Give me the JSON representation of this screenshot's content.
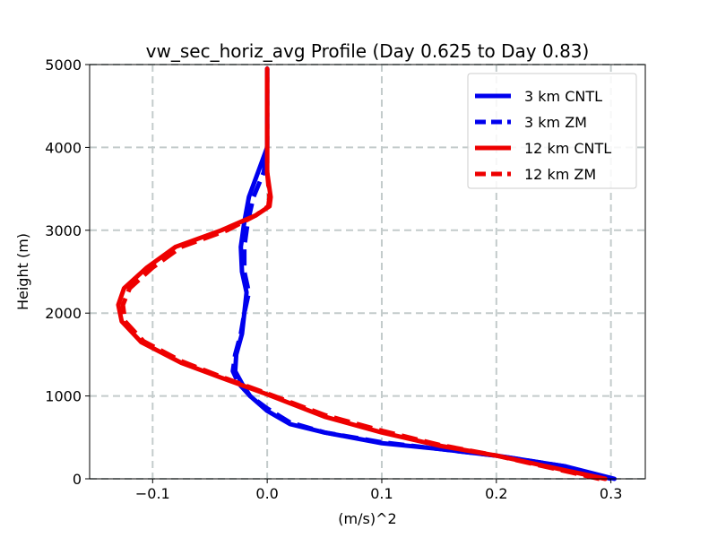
{
  "chart_data": {
    "type": "line",
    "title": "vw_sec_horiz_avg Profile (Day 0.625 to Day 0.83)",
    "xlabel": "(m/s)^2",
    "ylabel": "Height (m)",
    "xlim": [
      -0.155,
      0.33
    ],
    "ylim": [
      0,
      5000
    ],
    "x_ticks": [
      -0.1,
      0.0,
      0.1,
      0.2,
      0.3
    ],
    "x_tick_labels": [
      "−0.1",
      "0.0",
      "0.1",
      "0.2",
      "0.3"
    ],
    "y_ticks": [
      0,
      1000,
      2000,
      3000,
      4000,
      5000
    ],
    "y_tick_labels": [
      "0",
      "1000",
      "2000",
      "3000",
      "4000",
      "5000"
    ],
    "grid": true,
    "legend_position": "upper-right",
    "series": [
      {
        "name": "3 km CNTL",
        "color": "#0000ee",
        "style": "solid",
        "points": [
          [
            0.303,
            0
          ],
          [
            0.26,
            150
          ],
          [
            0.2,
            280
          ],
          [
            0.15,
            360
          ],
          [
            0.1,
            430
          ],
          [
            0.05,
            560
          ],
          [
            0.02,
            660
          ],
          [
            0.0,
            820
          ],
          [
            -0.015,
            1000
          ],
          [
            -0.022,
            1150
          ],
          [
            -0.028,
            1300
          ],
          [
            -0.027,
            1500
          ],
          [
            -0.022,
            1750
          ],
          [
            -0.02,
            2000
          ],
          [
            -0.018,
            2250
          ],
          [
            -0.022,
            2500
          ],
          [
            -0.023,
            2800
          ],
          [
            -0.02,
            3100
          ],
          [
            -0.016,
            3400
          ],
          [
            -0.008,
            3700
          ],
          [
            0.0,
            4000
          ],
          [
            0.0,
            4500
          ],
          [
            0.0,
            4950
          ]
        ]
      },
      {
        "name": "3 km ZM",
        "color": "#0000ee",
        "style": "dashed",
        "points": [
          [
            0.3,
            0
          ],
          [
            0.26,
            150
          ],
          [
            0.2,
            280
          ],
          [
            0.15,
            360
          ],
          [
            0.1,
            440
          ],
          [
            0.05,
            560
          ],
          [
            0.02,
            680
          ],
          [
            0.0,
            850
          ],
          [
            -0.015,
            1000
          ],
          [
            -0.025,
            1150
          ],
          [
            -0.03,
            1300
          ],
          [
            -0.028,
            1500
          ],
          [
            -0.023,
            1750
          ],
          [
            -0.02,
            2000
          ],
          [
            -0.016,
            2250
          ],
          [
            -0.02,
            2500
          ],
          [
            -0.02,
            2800
          ],
          [
            -0.017,
            3100
          ],
          [
            -0.012,
            3400
          ],
          [
            -0.003,
            3700
          ],
          [
            0.0,
            4000
          ],
          [
            0.0,
            4500
          ],
          [
            0.0,
            4950
          ]
        ]
      },
      {
        "name": "12 km CNTL",
        "color": "#ee0000",
        "style": "solid",
        "points": [
          [
            0.295,
            0
          ],
          [
            0.2,
            280
          ],
          [
            0.15,
            400
          ],
          [
            0.1,
            560
          ],
          [
            0.05,
            750
          ],
          [
            0.0,
            1020
          ],
          [
            -0.04,
            1220
          ],
          [
            -0.075,
            1400
          ],
          [
            -0.11,
            1650
          ],
          [
            -0.127,
            1900
          ],
          [
            -0.13,
            2100
          ],
          [
            -0.125,
            2300
          ],
          [
            -0.105,
            2550
          ],
          [
            -0.08,
            2800
          ],
          [
            -0.04,
            3000
          ],
          [
            -0.01,
            3180
          ],
          [
            0.002,
            3290
          ],
          [
            0.003,
            3400
          ],
          [
            0.0,
            3700
          ],
          [
            0.0,
            4200
          ],
          [
            0.0,
            4950
          ]
        ]
      },
      {
        "name": "12 km ZM",
        "color": "#ee0000",
        "style": "dashed",
        "points": [
          [
            0.29,
            0
          ],
          [
            0.2,
            280
          ],
          [
            0.15,
            410
          ],
          [
            0.1,
            580
          ],
          [
            0.05,
            770
          ],
          [
            0.0,
            1030
          ],
          [
            -0.04,
            1230
          ],
          [
            -0.075,
            1420
          ],
          [
            -0.108,
            1660
          ],
          [
            -0.124,
            1900
          ],
          [
            -0.126,
            2100
          ],
          [
            -0.12,
            2300
          ],
          [
            -0.1,
            2550
          ],
          [
            -0.075,
            2800
          ],
          [
            -0.035,
            3000
          ],
          [
            -0.01,
            3180
          ],
          [
            0.001,
            3290
          ],
          [
            0.002,
            3400
          ],
          [
            0.0,
            3700
          ],
          [
            0.0,
            4200
          ],
          [
            0.0,
            4950
          ]
        ]
      }
    ]
  }
}
